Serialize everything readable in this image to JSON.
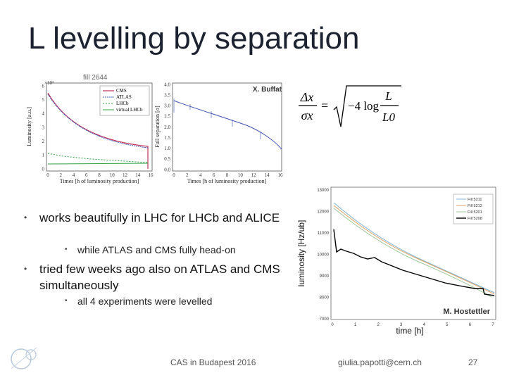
{
  "slide": {
    "title": "L levelling by separation",
    "page_number": "27"
  },
  "figure_left": {
    "fill_label": "fill 2644",
    "credit": "X. Buffat",
    "left_panel": {
      "exponent": "×10³",
      "ylabel": "Luminosity [a.u.]",
      "xlabel": "Times [h of luminosity production]",
      "yticks": [
        "6",
        "5",
        "4",
        "3",
        "2",
        "1",
        "0"
      ],
      "xticks": [
        "0",
        "2",
        "4",
        "6",
        "8",
        "10",
        "12",
        "14",
        "16"
      ],
      "legend": [
        "CMS",
        "ATLAS",
        "LHCb",
        "virtual LHCb"
      ]
    },
    "right_panel": {
      "ylabel": "Full separation [σ]",
      "xlabel": "Times [h of luminosity production]",
      "yticks": [
        "4.0",
        "3.5",
        "3.0",
        "2.5",
        "2.0",
        "1.5",
        "1.0",
        "0.5",
        "0.0"
      ],
      "xticks": [
        "0",
        "2",
        "4",
        "6",
        "8",
        "10",
        "12",
        "14",
        "16"
      ]
    }
  },
  "formula": {
    "lhs_num": "Δx",
    "lhs_den": "σx",
    "equals": "=",
    "rhs_coeff": "−4 log",
    "rhs_num": "L",
    "rhs_den": "L0"
  },
  "figure_right": {
    "ylabel": "luminosity [Hz/ub]",
    "xlabel": "time [h]",
    "credit": "M. Hostettler",
    "yticks": [
      "13000",
      "12000",
      "11000",
      "10000",
      "9000",
      "8000",
      "7000"
    ],
    "xticks": [
      "0",
      "1",
      "2",
      "3",
      "4",
      "5",
      "6",
      "7"
    ],
    "legend": [
      "Fill 5211",
      "Fill 5212",
      "Fill 5201",
      "Fill 5208"
    ],
    "colors": {
      "fill1": "#7fb3d5",
      "fill2": "#e0a060",
      "fill3": "#9bc89b",
      "fill4": "#000000"
    }
  },
  "bullets": [
    {
      "text": "works beautifully in LHC for LHCb and ALICE",
      "sub": "while ATLAS and CMS fully head-on"
    },
    {
      "text": "tried few weeks ago also on ATLAS and CMS simultaneously",
      "sub": "all 4 experiments were levelled"
    }
  ],
  "footer": {
    "conference": "CAS in Budapest 2016",
    "email": "giulia.papotti@cern.ch"
  },
  "colors": {
    "title": "#1c2230",
    "cms": "#c0305a",
    "atlas": "#4060c0",
    "lhcb": "#30a040",
    "separation": "#4050b0"
  }
}
